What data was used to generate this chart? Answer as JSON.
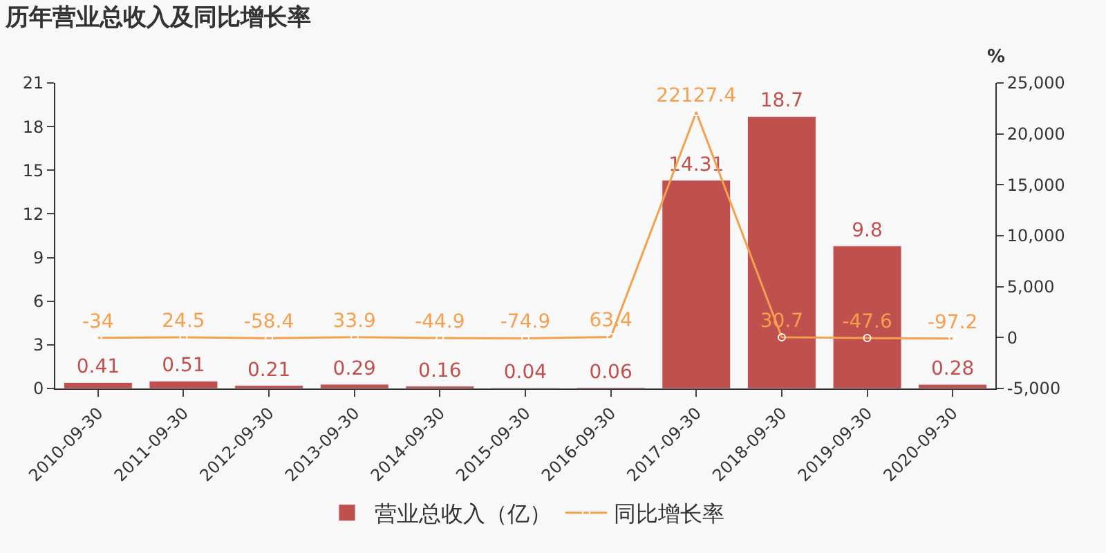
{
  "chart_data": {
    "type": "bar",
    "title": "历年营业总收入及同比增长率",
    "y2label": "%",
    "categories": [
      "2010-09-30",
      "2011-09-30",
      "2012-09-30",
      "2013-09-30",
      "2014-09-30",
      "2015-09-30",
      "2016-09-30",
      "2017-09-30",
      "2018-09-30",
      "2019-09-30",
      "2020-09-30"
    ],
    "series": [
      {
        "name": "营业总收入（亿）",
        "color": "#c0504d",
        "values": [
          0.41,
          0.51,
          0.21,
          0.29,
          0.16,
          0.04,
          0.06,
          14.31,
          18.7,
          9.8,
          0.28
        ]
      },
      {
        "name": "同比增长率",
        "type": "line",
        "axis": "y2",
        "color": "#f5a04f",
        "marker": "circle",
        "values": [
          -34,
          24.5,
          -58.4,
          33.9,
          -44.9,
          -74.9,
          63.4,
          22127.4,
          30.7,
          -47.6,
          -97.2
        ]
      }
    ],
    "ylim": [
      0,
      21
    ],
    "yticks": [
      0,
      3,
      6,
      9,
      12,
      15,
      18,
      21
    ],
    "y2lim": [
      -5000,
      25000
    ],
    "y2ticks": [
      {
        "value": -5000,
        "label": "-5,000"
      },
      0,
      {
        "value": 5000,
        "label": "5,000"
      },
      {
        "value": 10000,
        "label": "10,000"
      },
      {
        "value": 15000,
        "label": "15,000"
      },
      {
        "value": 20000,
        "label": "20,000"
      },
      {
        "value": 25000,
        "label": "25,000"
      }
    ],
    "data_labels": true,
    "grid": false,
    "legend": "bottom"
  }
}
